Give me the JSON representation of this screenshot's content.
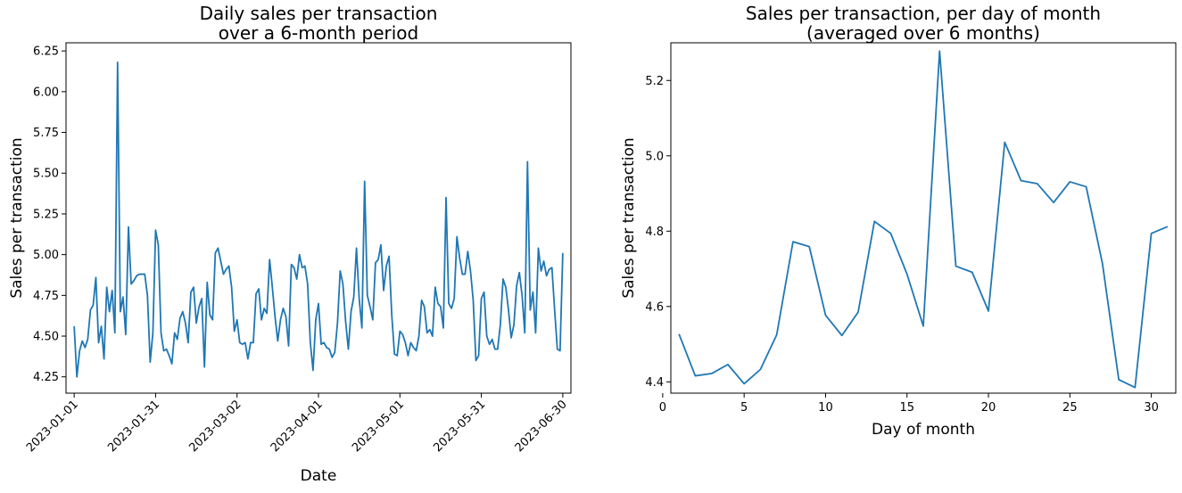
{
  "chart_data": [
    {
      "type": "line",
      "title": "Daily sales per transaction\nover a 6-month period",
      "xlabel": "Date",
      "ylabel": "Sales per transaction",
      "x_start": "2023-01-01",
      "xlim": [
        "2022-12-29",
        "2023-07-03"
      ],
      "ylim": [
        4.15,
        6.3
      ],
      "grid": false,
      "legend": "none",
      "color": "#1f77b4",
      "xticks": [
        "2023-01-01",
        "2023-01-31",
        "2023-03-02",
        "2023-04-01",
        "2023-05-01",
        "2023-05-31",
        "2023-06-30"
      ],
      "yticks": [
        "4.25",
        "4.50",
        "4.75",
        "5.00",
        "5.25",
        "5.50",
        "5.75",
        "6.00",
        "6.25"
      ],
      "values": [
        4.56,
        4.25,
        4.41,
        4.47,
        4.43,
        4.48,
        4.66,
        4.69,
        4.86,
        4.46,
        4.56,
        4.36,
        4.8,
        4.65,
        4.78,
        4.52,
        6.18,
        4.65,
        4.74,
        4.51,
        5.17,
        4.82,
        4.84,
        4.87,
        4.88,
        4.88,
        4.88,
        4.75,
        4.34,
        4.52,
        5.15,
        5.06,
        4.52,
        4.41,
        4.42,
        4.38,
        4.33,
        4.52,
        4.48,
        4.61,
        4.65,
        4.58,
        4.46,
        4.77,
        4.8,
        4.58,
        4.68,
        4.73,
        4.31,
        4.83,
        4.63,
        4.6,
        5.01,
        5.04,
        4.96,
        4.88,
        4.91,
        4.93,
        4.8,
        4.53,
        4.6,
        4.46,
        4.45,
        4.46,
        4.36,
        4.46,
        4.46,
        4.76,
        4.79,
        4.6,
        4.67,
        4.64,
        4.97,
        4.8,
        4.62,
        4.47,
        4.6,
        4.67,
        4.62,
        4.44,
        4.94,
        4.92,
        4.85,
        5.0,
        4.92,
        4.93,
        4.82,
        4.46,
        4.29,
        4.6,
        4.7,
        4.45,
        4.46,
        4.43,
        4.42,
        4.37,
        4.4,
        4.58,
        4.9,
        4.82,
        4.59,
        4.42,
        4.65,
        4.74,
        5.04,
        4.73,
        4.55,
        5.45,
        4.75,
        4.68,
        4.6,
        4.95,
        4.97,
        5.06,
        4.78,
        4.93,
        4.99,
        4.63,
        4.39,
        4.38,
        4.53,
        4.51,
        4.46,
        4.38,
        4.46,
        4.43,
        4.41,
        4.5,
        4.72,
        4.68,
        4.52,
        4.54,
        4.5,
        4.8,
        4.7,
        4.68,
        4.55,
        5.35,
        4.7,
        4.67,
        4.73,
        5.11,
        4.98,
        4.88,
        4.88,
        5.02,
        4.9,
        4.72,
        4.35,
        4.38,
        4.73,
        4.77,
        4.5,
        4.45,
        4.48,
        4.42,
        4.42,
        4.57,
        4.85,
        4.8,
        4.66,
        4.49,
        4.57,
        4.81,
        4.89,
        4.75,
        4.52,
        5.57,
        4.66,
        4.77,
        4.52,
        5.04,
        4.9,
        4.96,
        4.87,
        4.91,
        4.92,
        4.66,
        4.42,
        4.41,
        5.01
      ]
    },
    {
      "type": "line",
      "title": "Sales per transaction, per day of month\n(averaged over 6 months)",
      "xlabel": "Day of month",
      "ylabel": "Sales per transaction",
      "xlim": [
        0.5,
        31.5
      ],
      "ylim": [
        4.37,
        5.3
      ],
      "grid": false,
      "legend": "none",
      "color": "#1f77b4",
      "xticks": [
        "0",
        "5",
        "10",
        "15",
        "20",
        "25",
        "30"
      ],
      "yticks": [
        "4.4",
        "4.6",
        "4.8",
        "5.0",
        "5.2"
      ],
      "x": [
        1,
        2,
        3,
        4,
        5,
        6,
        7,
        8,
        9,
        10,
        11,
        12,
        13,
        14,
        15,
        16,
        17,
        18,
        19,
        20,
        21,
        22,
        23,
        24,
        25,
        26,
        27,
        28,
        29,
        30,
        31
      ],
      "values": [
        4.527,
        4.416,
        4.422,
        4.446,
        4.395,
        4.433,
        4.525,
        4.772,
        4.759,
        4.577,
        4.523,
        4.585,
        4.826,
        4.794,
        4.686,
        4.548,
        5.278,
        4.707,
        4.691,
        4.588,
        5.036,
        4.934,
        4.926,
        4.876,
        4.931,
        4.918,
        4.714,
        4.406,
        4.385,
        4.794,
        4.812
      ]
    }
  ]
}
